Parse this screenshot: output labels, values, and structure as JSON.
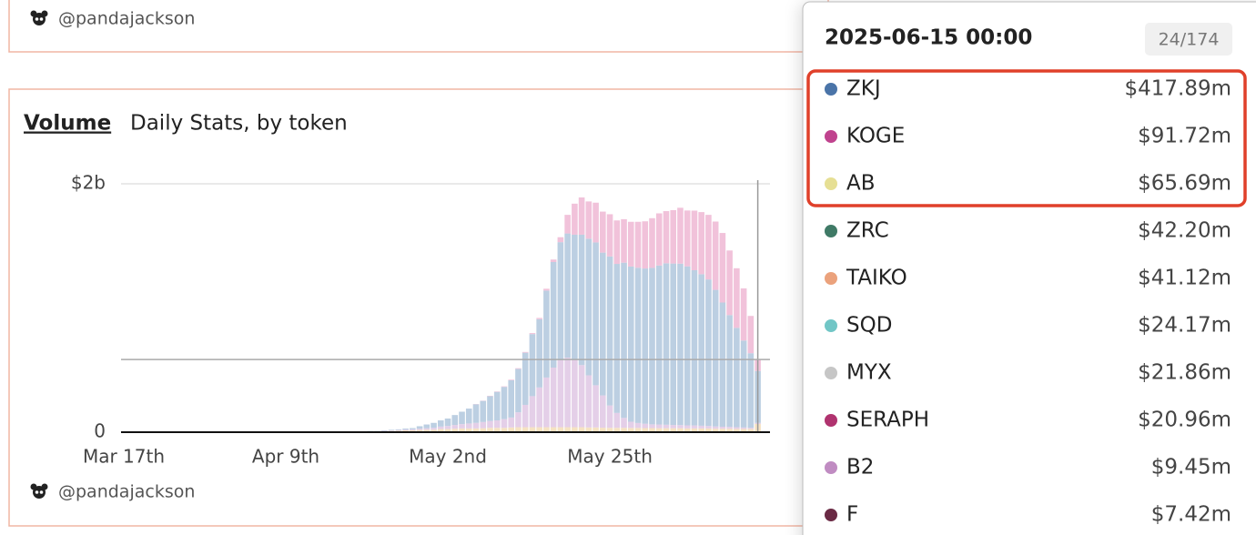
{
  "top_card": {
    "handle": "@pandajackson"
  },
  "chart_data": {
    "type": "bar",
    "stacked": true,
    "title": "Volume",
    "subtitle": "Daily Stats, by token",
    "categories": [
      "Mar 17th",
      null,
      null,
      null,
      null,
      null,
      null,
      null,
      null,
      null,
      null,
      null,
      null,
      null,
      null,
      null,
      null,
      null,
      null,
      null,
      null,
      null,
      null,
      "Apr 9th",
      null,
      null,
      null,
      null,
      null,
      null,
      null,
      null,
      null,
      null,
      null,
      null,
      null,
      null,
      null,
      null,
      null,
      null,
      null,
      null,
      null,
      null,
      "May 2nd",
      null,
      null,
      null,
      null,
      null,
      null,
      null,
      null,
      null,
      null,
      null,
      null,
      null,
      null,
      null,
      null,
      null,
      null,
      null,
      null,
      null,
      null,
      "May 25th",
      null,
      null,
      null,
      null,
      null,
      null,
      null,
      null,
      null,
      null,
      null,
      null,
      null,
      null,
      null,
      null,
      null,
      null,
      null,
      null,
      null
    ],
    "ylim": [
      0,
      2000
    ],
    "yticks": [
      0,
      {
        "value": 2000,
        "label": "$2b"
      }
    ],
    "grid": true,
    "series": [
      {
        "color": "#f5e2c2",
        "values": [
          2,
          2,
          2,
          2,
          2,
          2,
          2,
          2,
          2,
          2,
          2,
          2,
          2,
          2,
          2,
          2,
          2,
          2,
          2,
          2,
          2,
          2,
          2,
          2,
          2,
          2,
          2,
          2,
          2,
          2,
          3,
          3,
          3,
          3,
          3,
          5,
          5,
          8,
          10,
          12,
          15,
          15,
          18,
          20,
          20,
          25,
          25,
          28,
          30,
          30,
          30,
          32,
          35,
          35,
          35,
          38,
          40,
          40,
          40,
          40,
          40,
          40,
          40,
          40,
          40,
          40,
          38,
          38,
          36,
          35,
          35,
          35,
          34,
          34,
          33,
          33,
          32,
          32,
          32,
          32,
          30,
          30,
          30,
          30,
          28,
          28,
          28,
          26,
          26,
          26,
          66
        ]
      },
      {
        "color": "#e4cfe8",
        "values": [
          0,
          0,
          0,
          0,
          0,
          0,
          0,
          0,
          0,
          0,
          0,
          0,
          0,
          0,
          0,
          0,
          0,
          0,
          0,
          0,
          0,
          0,
          0,
          0,
          0,
          0,
          0,
          0,
          0,
          0,
          0,
          0,
          0,
          0,
          0,
          2,
          2,
          3,
          4,
          5,
          6,
          8,
          10,
          12,
          15,
          20,
          25,
          30,
          35,
          40,
          45,
          50,
          55,
          60,
          70,
          80,
          120,
          180,
          250,
          320,
          400,
          480,
          540,
          560,
          550,
          500,
          420,
          340,
          260,
          180,
          120,
          80,
          50,
          40,
          35,
          30,
          30,
          28,
          26,
          25,
          25,
          24,
          22,
          20,
          18,
          16,
          15,
          14,
          12,
          10,
          9
        ]
      },
      {
        "color": "#bccfe2",
        "values": [
          3,
          3,
          2,
          2,
          1,
          1,
          1,
          1,
          1,
          1,
          1,
          1,
          1,
          1,
          1,
          1,
          1,
          1,
          1,
          1,
          1,
          1,
          1,
          1,
          1,
          1,
          1,
          1,
          1,
          1,
          1,
          1,
          1,
          2,
          2,
          3,
          3,
          4,
          5,
          6,
          8,
          10,
          20,
          30,
          40,
          50,
          60,
          80,
          100,
          120,
          150,
          170,
          200,
          230,
          260,
          300,
          350,
          420,
          500,
          550,
          700,
          850,
          950,
          1000,
          1000,
          1050,
          1100,
          1150,
          1150,
          1200,
          1200,
          1250,
          1250,
          1250,
          1250,
          1260,
          1280,
          1300,
          1300,
          1300,
          1280,
          1250,
          1220,
          1180,
          1100,
          1000,
          900,
          800,
          700,
          600,
          418
        ]
      },
      {
        "color": "#f1c2da",
        "values": [
          0,
          0,
          0,
          0,
          0,
          0,
          0,
          0,
          0,
          0,
          0,
          0,
          0,
          0,
          0,
          0,
          0,
          0,
          0,
          0,
          0,
          0,
          0,
          0,
          0,
          0,
          0,
          0,
          0,
          0,
          0,
          0,
          0,
          0,
          0,
          0,
          0,
          0,
          0,
          0,
          0,
          0,
          0,
          0,
          0,
          0,
          0,
          0,
          0,
          0,
          2,
          2,
          3,
          3,
          4,
          5,
          5,
          6,
          8,
          10,
          15,
          20,
          40,
          150,
          250,
          300,
          300,
          320,
          330,
          340,
          350,
          350,
          360,
          370,
          380,
          400,
          420,
          420,
          430,
          450,
          450,
          480,
          500,
          520,
          550,
          560,
          520,
          480,
          420,
          300,
          92
        ]
      }
    ]
  },
  "footer": {
    "handle": "@pandajackson"
  },
  "tooltip": {
    "title": "2025-06-15 00:00",
    "counter": "24/174",
    "rows": [
      {
        "name": "ZKJ",
        "color": "#4a74a8",
        "value": 417.89,
        "value_label": "$417.89m"
      },
      {
        "name": "KOGE",
        "color": "#c0438e",
        "value": 91.72,
        "value_label": "$91.72m"
      },
      {
        "name": "AB",
        "color": "#e6df94",
        "value": 65.69,
        "value_label": "$65.69m"
      },
      {
        "name": "ZRC",
        "color": "#3f7a66",
        "value": 42.2,
        "value_label": "$42.20m"
      },
      {
        "name": "TAIKO",
        "color": "#eba27c",
        "value": 41.12,
        "value_label": "$41.12m"
      },
      {
        "name": "SQD",
        "color": "#71c6c6",
        "value": 24.17,
        "value_label": "$24.17m"
      },
      {
        "name": "MYX",
        "color": "#c6c6c6",
        "value": 21.86,
        "value_label": "$21.86m"
      },
      {
        "name": "SERAPH",
        "color": "#b0336f",
        "value": 20.96,
        "value_label": "$20.96m"
      },
      {
        "name": "B2",
        "color": "#c08cc2",
        "value": 9.45,
        "value_label": "$9.45m"
      },
      {
        "name": "F",
        "color": "#6a2a44",
        "value": 7.42,
        "value_label": "$7.42m"
      }
    ]
  }
}
